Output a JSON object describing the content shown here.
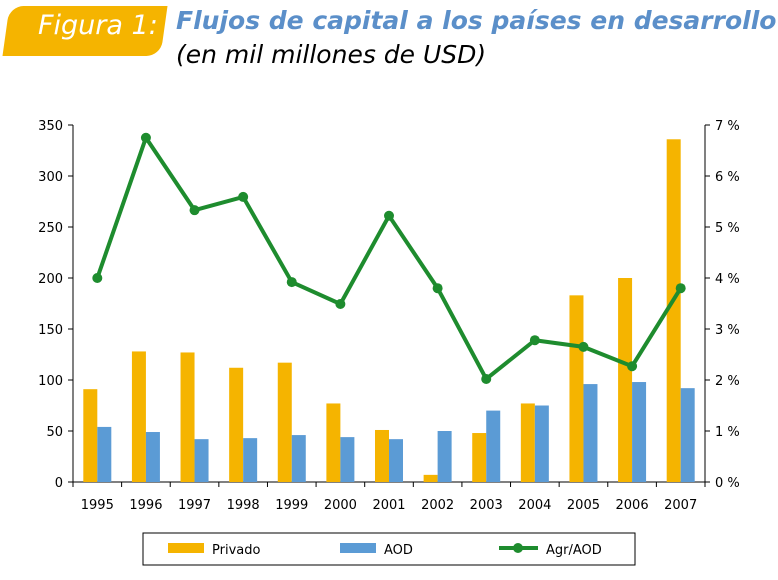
{
  "header": {
    "figure_label": "Figura 1:",
    "title": "Flujos de capital a los países en desarrollo",
    "subtitle": "(en mil millones de USD)"
  },
  "chart_data": {
    "type": "bar",
    "categories": [
      "1995",
      "1996",
      "1997",
      "1998",
      "1999",
      "2000",
      "2001",
      "2002",
      "2003",
      "2004",
      "2005",
      "2006",
      "2007"
    ],
    "series": [
      {
        "name": "Privado",
        "axis": "left",
        "type": "bar",
        "color": "#f5b400",
        "values": [
          91,
          128,
          127,
          112,
          117,
          77,
          51,
          7,
          48,
          77,
          183,
          200,
          336
        ]
      },
      {
        "name": "AOD",
        "axis": "left",
        "type": "bar",
        "color": "#5b9bd5",
        "values": [
          54,
          49,
          42,
          43,
          46,
          44,
          42,
          50,
          70,
          75,
          96,
          98,
          92
        ]
      },
      {
        "name": "Agr/AOD",
        "axis": "right",
        "type": "line",
        "color": "#1e8c2e",
        "values": [
          4.0,
          6.75,
          5.33,
          5.59,
          3.92,
          3.49,
          5.22,
          3.8,
          2.02,
          2.78,
          2.65,
          2.27,
          3.8
        ]
      }
    ],
    "ylim": [
      0,
      350
    ],
    "yticks": [
      "0",
      "50",
      "100",
      "150",
      "200",
      "250",
      "300",
      "350"
    ],
    "y2lim": [
      0,
      7
    ],
    "y2ticks": [
      "0 %",
      "1 %",
      "2 %",
      "3 %",
      "4 %",
      "5 %",
      "6 %",
      "7 %"
    ],
    "legend": "bottom",
    "grid": false
  }
}
